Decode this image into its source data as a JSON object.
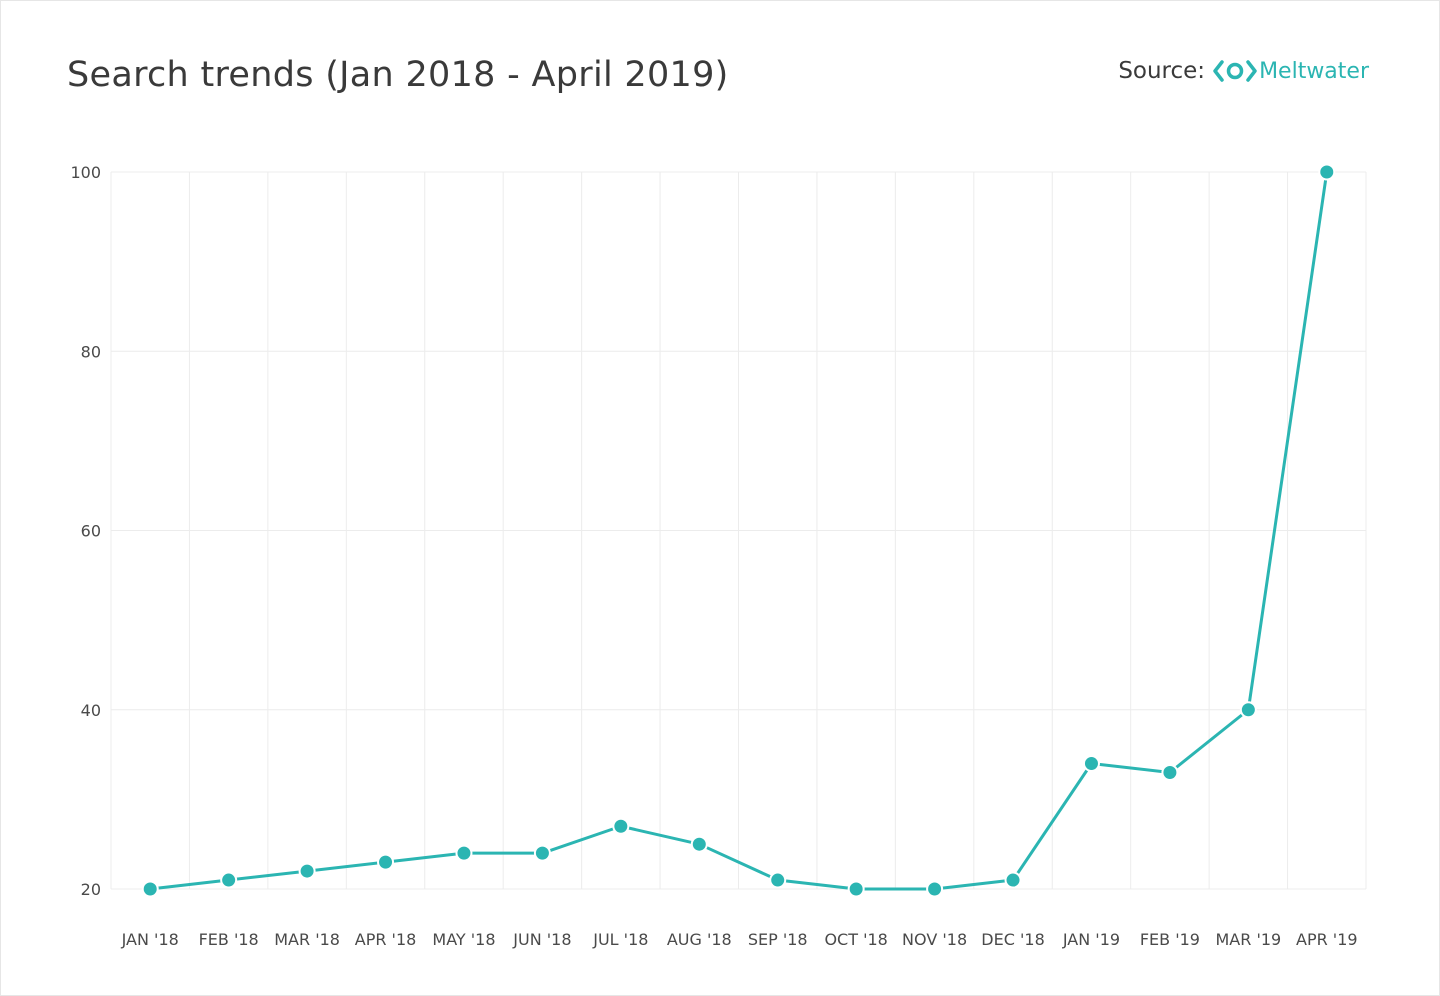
{
  "header": {
    "title": "Search trends (Jan 2018 - April 2019)",
    "source_label": "Source:",
    "brand_name": "Meltwater",
    "brand_icon": "meltwater-logo-icon"
  },
  "colors": {
    "series": "#2bb5b2",
    "grid": "#ececec",
    "text": "#3a3a3a"
  },
  "chart_data": {
    "type": "line",
    "title": "Search trends (Jan 2018 - April 2019)",
    "xlabel": "",
    "ylabel": "",
    "categories": [
      "JAN '18",
      "FEB '18",
      "MAR '18",
      "APR '18",
      "MAY '18",
      "JUN '18",
      "JUL '18",
      "AUG '18",
      "SEP '18",
      "OCT '18",
      "NOV '18",
      "DEC '18",
      "JAN '19",
      "FEB '19",
      "MAR '19",
      "APR '19"
    ],
    "series": [
      {
        "values": [
          20,
          21,
          22,
          23,
          24,
          24,
          27,
          25,
          21,
          20,
          20,
          21,
          34,
          33,
          40,
          100
        ]
      }
    ],
    "ylim": [
      20,
      100
    ],
    "yticks": [
      20,
      40,
      60,
      80,
      100
    ],
    "grid": true,
    "legend": "none"
  }
}
